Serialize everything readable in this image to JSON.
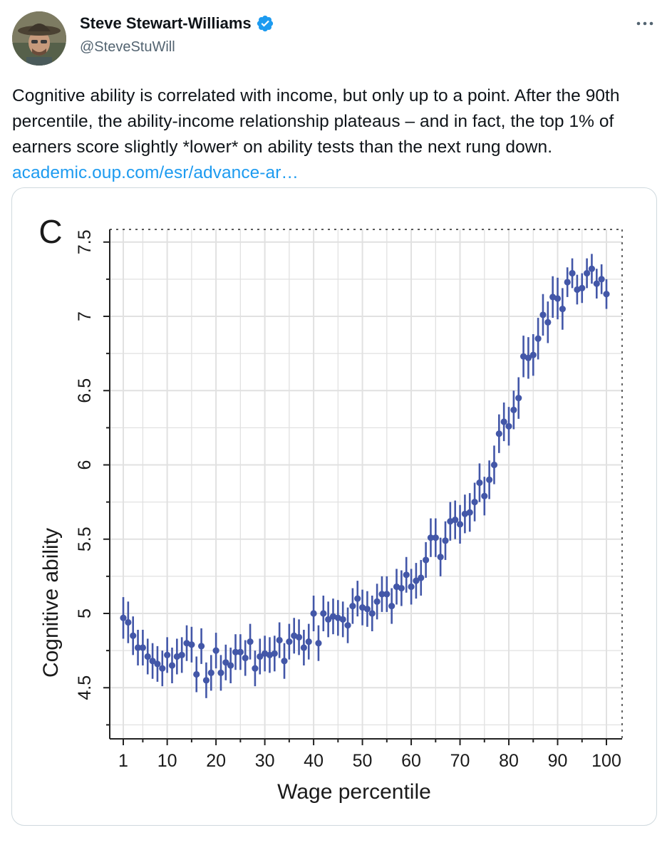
{
  "author": {
    "display_name": "Steve Stewart-Williams",
    "handle": "@SteveStuWill",
    "verified": true,
    "verified_color": "#1d9bf0"
  },
  "tweet": {
    "text": "Cognitive ability is correlated with income, but only up to a point. After the 90th percentile, the ability-income relationship plateaus – and in fact, the top 1% of earners score slightly *lower* on ability tests than the next rung down. ",
    "link_text": "academic.oup.com/esr/advance-ar…",
    "link_color": "#1d9bf0"
  },
  "icons": {
    "more": "more-horizontal-icon",
    "verified": "verified-badge-icon"
  },
  "chart_data": {
    "type": "scatter",
    "panel_label": "C",
    "xlabel": "Wage percentile",
    "ylabel": "Cognitive ability",
    "xlim": [
      1,
      100
    ],
    "ylim": [
      4.1,
      7.6
    ],
    "x_ticks": [
      1,
      10,
      20,
      30,
      40,
      50,
      60,
      70,
      80,
      90,
      100
    ],
    "y_ticks": [
      4.5,
      5,
      5.5,
      6,
      6.5,
      7,
      7.5
    ],
    "grid": true,
    "error_bars": true,
    "marker_color": "#4357a8",
    "x": [
      1,
      2,
      3,
      4,
      5,
      6,
      7,
      8,
      9,
      10,
      11,
      12,
      13,
      14,
      15,
      16,
      17,
      18,
      19,
      20,
      21,
      22,
      23,
      24,
      25,
      26,
      27,
      28,
      29,
      30,
      31,
      32,
      33,
      34,
      35,
      36,
      37,
      38,
      39,
      40,
      41,
      42,
      43,
      44,
      45,
      46,
      47,
      48,
      49,
      50,
      51,
      52,
      53,
      54,
      55,
      56,
      57,
      58,
      59,
      60,
      61,
      62,
      63,
      64,
      65,
      66,
      67,
      68,
      69,
      70,
      71,
      72,
      73,
      74,
      75,
      76,
      77,
      78,
      79,
      80,
      81,
      82,
      83,
      84,
      85,
      86,
      87,
      88,
      89,
      90,
      91,
      92,
      93,
      94,
      95,
      96,
      97,
      98,
      99,
      100
    ],
    "y": [
      4.97,
      4.94,
      4.85,
      4.77,
      4.77,
      4.71,
      4.68,
      4.66,
      4.63,
      4.72,
      4.65,
      4.71,
      4.72,
      4.8,
      4.79,
      4.59,
      4.78,
      4.55,
      4.6,
      4.75,
      4.6,
      4.67,
      4.65,
      4.74,
      4.74,
      4.7,
      4.81,
      4.63,
      4.71,
      4.73,
      4.72,
      4.73,
      4.82,
      4.68,
      4.81,
      4.85,
      4.84,
      4.77,
      4.81,
      5.0,
      4.8,
      5.0,
      4.96,
      4.98,
      4.97,
      4.96,
      4.92,
      5.05,
      5.1,
      5.04,
      5.03,
      5.0,
      5.08,
      5.13,
      5.13,
      5.05,
      5.18,
      5.17,
      5.26,
      5.18,
      5.22,
      5.24,
      5.36,
      5.51,
      5.51,
      5.38,
      5.49,
      5.62,
      5.63,
      5.6,
      5.67,
      5.68,
      5.75,
      5.88,
      5.79,
      5.9,
      6.0,
      6.21,
      6.29,
      6.26,
      6.37,
      6.45,
      6.73,
      6.72,
      6.74,
      6.85,
      7.01,
      6.96,
      7.13,
      7.12,
      7.05,
      7.23,
      7.29,
      7.18,
      7.19,
      7.29,
      7.32,
      7.22,
      7.25,
      7.15
    ],
    "err": [
      0.14,
      0.14,
      0.13,
      0.12,
      0.12,
      0.12,
      0.12,
      0.12,
      0.12,
      0.12,
      0.12,
      0.12,
      0.12,
      0.12,
      0.12,
      0.12,
      0.12,
      0.12,
      0.12,
      0.12,
      0.12,
      0.12,
      0.12,
      0.12,
      0.12,
      0.12,
      0.12,
      0.12,
      0.12,
      0.12,
      0.12,
      0.12,
      0.12,
      0.12,
      0.12,
      0.12,
      0.12,
      0.12,
      0.12,
      0.12,
      0.12,
      0.12,
      0.12,
      0.12,
      0.12,
      0.12,
      0.12,
      0.12,
      0.12,
      0.12,
      0.12,
      0.12,
      0.12,
      0.12,
      0.12,
      0.12,
      0.12,
      0.12,
      0.12,
      0.12,
      0.12,
      0.12,
      0.12,
      0.13,
      0.13,
      0.13,
      0.13,
      0.13,
      0.13,
      0.13,
      0.13,
      0.13,
      0.13,
      0.13,
      0.13,
      0.13,
      0.13,
      0.13,
      0.13,
      0.13,
      0.13,
      0.14,
      0.14,
      0.14,
      0.14,
      0.14,
      0.14,
      0.14,
      0.14,
      0.14,
      0.14,
      0.1,
      0.1,
      0.1,
      0.1,
      0.1,
      0.1,
      0.1,
      0.1,
      0.1
    ]
  }
}
